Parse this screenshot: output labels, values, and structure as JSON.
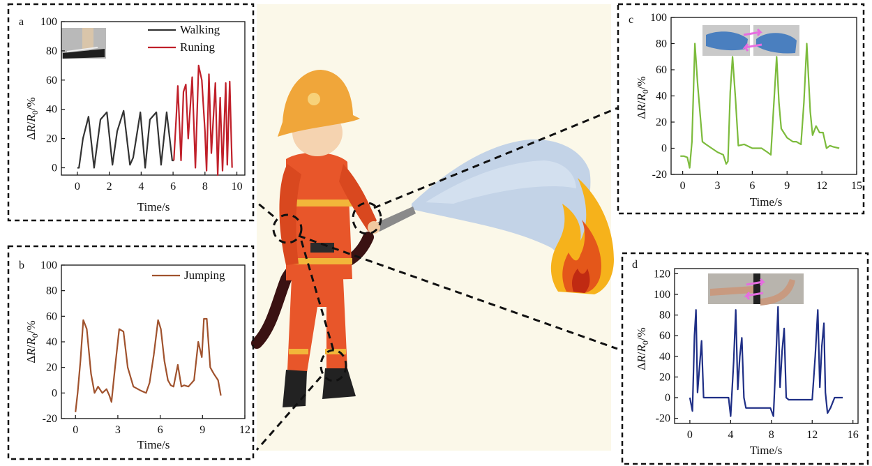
{
  "chart_data": [
    {
      "panel": "a",
      "type": "line",
      "xlabel": "Time/s",
      "ylabel": "ΔR/R0/%",
      "xlim": [
        -1,
        10.5
      ],
      "ylim": [
        -5,
        100
      ],
      "xticks": [
        0,
        2,
        4,
        6,
        8,
        10
      ],
      "yticks": [
        0,
        20,
        40,
        60,
        80,
        100
      ],
      "legend": "top-right",
      "series": [
        {
          "name": "Walking",
          "color": "#333333",
          "x": [
            0,
            0.1,
            0.35,
            0.7,
            1.05,
            1.45,
            1.85,
            2.2,
            2.5,
            2.9,
            3.3,
            3.5,
            3.95,
            4.25,
            4.55,
            4.95,
            5.25,
            5.6,
            5.95,
            6.05
          ],
          "y": [
            0,
            0,
            20,
            35,
            0,
            33,
            38,
            2,
            25,
            39,
            2,
            7,
            38,
            0,
            33,
            38,
            2,
            38,
            5,
            5
          ]
        },
        {
          "name": "Runing",
          "color": "#c0202a",
          "x": [
            6.05,
            6.2,
            6.3,
            6.5,
            6.65,
            6.8,
            6.95,
            7.2,
            7.4,
            7.6,
            7.8,
            8.0,
            8.1,
            8.25,
            8.4,
            8.65,
            8.8,
            8.95,
            9.1,
            9.3,
            9.4,
            9.55,
            9.7
          ],
          "y": [
            5,
            35,
            56,
            5,
            52,
            57,
            20,
            62,
            0,
            70,
            60,
            25,
            -2,
            64,
            10,
            58,
            -5,
            48,
            -2,
            58,
            2,
            59,
            0
          ]
        }
      ]
    },
    {
      "panel": "b",
      "type": "line",
      "xlabel": "Time/s",
      "ylabel": "ΔR/R0/%",
      "xlim": [
        -1,
        12
      ],
      "ylim": [
        -20,
        100
      ],
      "xticks": [
        0,
        3,
        6,
        9,
        12
      ],
      "yticks": [
        -20,
        0,
        20,
        40,
        60,
        80,
        100
      ],
      "legend": "top-right",
      "series": [
        {
          "name": "Jumping",
          "color": "#a0522d",
          "x": [
            0,
            0.15,
            0.35,
            0.55,
            0.8,
            1.1,
            1.35,
            1.6,
            1.9,
            2.2,
            2.4,
            2.55,
            2.8,
            3.1,
            3.4,
            3.7,
            4.1,
            4.6,
            5.0,
            5.25,
            5.55,
            5.85,
            6.05,
            6.3,
            6.55,
            6.75,
            6.95,
            7.25,
            7.5,
            7.7,
            8.0,
            8.4,
            8.7,
            8.95,
            9.1,
            9.3,
            9.55,
            9.8,
            10.1,
            10.3
          ],
          "y": [
            -15,
            0,
            25,
            57,
            50,
            15,
            0,
            5,
            0,
            3,
            -2,
            -7,
            20,
            50,
            48,
            20,
            5,
            2,
            0,
            8,
            30,
            57,
            50,
            25,
            10,
            6,
            5,
            22,
            5,
            6,
            5,
            10,
            40,
            28,
            58,
            58,
            20,
            15,
            10,
            -2
          ]
        }
      ]
    },
    {
      "panel": "c",
      "type": "line",
      "xlabel": "Time/s",
      "ylabel": "ΔR/R0/%",
      "xlim": [
        -1,
        15
      ],
      "ylim": [
        -20,
        100
      ],
      "xticks": [
        0,
        3,
        6,
        9,
        12,
        15
      ],
      "yticks": [
        -20,
        0,
        20,
        40,
        60,
        80,
        100
      ],
      "series": [
        {
          "name": "",
          "color": "#7cbb3c",
          "x": [
            -0.2,
            0.1,
            0.4,
            0.6,
            0.8,
            1.05,
            1.3,
            1.7,
            2.0,
            2.5,
            3.0,
            3.5,
            3.75,
            3.9,
            4.1,
            4.3,
            4.55,
            4.8,
            5.3,
            6.0,
            6.8,
            7.3,
            7.6,
            7.8,
            8.1,
            8.3,
            8.5,
            9.0,
            9.5,
            9.8,
            10.2,
            10.45,
            10.7,
            11.0,
            11.2,
            11.5,
            11.8,
            12.1,
            12.4,
            12.7,
            13.0,
            13.5
          ],
          "y": [
            -6,
            -6,
            -7,
            -15,
            5,
            80,
            48,
            5,
            3,
            0,
            -3,
            -5,
            -12,
            -10,
            43,
            70,
            38,
            2,
            3,
            0,
            0,
            -3,
            -5,
            25,
            70,
            35,
            15,
            8,
            5,
            5,
            3,
            35,
            80,
            28,
            10,
            17,
            12,
            12,
            0,
            2,
            1,
            0
          ]
        }
      ]
    },
    {
      "panel": "d",
      "type": "line",
      "xlabel": "Time/s",
      "ylabel": "ΔR/R0/%",
      "xlim": [
        -1.5,
        16.5
      ],
      "ylim": [
        -25,
        125
      ],
      "xticks": [
        0,
        4,
        8,
        12,
        16
      ],
      "yticks": [
        -20,
        0,
        20,
        40,
        60,
        80,
        100,
        120
      ],
      "series": [
        {
          "name": "",
          "color": "#1f2f86",
          "x": [
            0,
            0.25,
            0.45,
            0.6,
            0.75,
            0.95,
            1.15,
            1.35,
            1.6,
            2.0,
            3.3,
            3.8,
            4.0,
            4.3,
            4.5,
            4.7,
            4.9,
            5.1,
            5.3,
            5.5,
            5.8,
            7.5,
            7.9,
            8.2,
            8.45,
            8.65,
            8.85,
            9.05,
            9.25,
            9.45,
            9.7,
            10.0,
            11.3,
            11.7,
            12.0,
            12.3,
            12.55,
            12.75,
            12.95,
            13.15,
            13.3,
            13.5,
            13.8,
            14.2,
            14.5,
            15.0
          ],
          "y": [
            0,
            -13,
            60,
            85,
            5,
            30,
            55,
            0,
            0,
            0,
            0,
            0,
            -18,
            35,
            85,
            8,
            40,
            58,
            0,
            -10,
            -10,
            -10,
            -10,
            -18,
            40,
            88,
            10,
            45,
            67,
            0,
            -2,
            -2,
            -2,
            -2,
            -2,
            40,
            85,
            10,
            50,
            72,
            5,
            -15,
            -10,
            0,
            0,
            0
          ]
        }
      ]
    }
  ]
}
